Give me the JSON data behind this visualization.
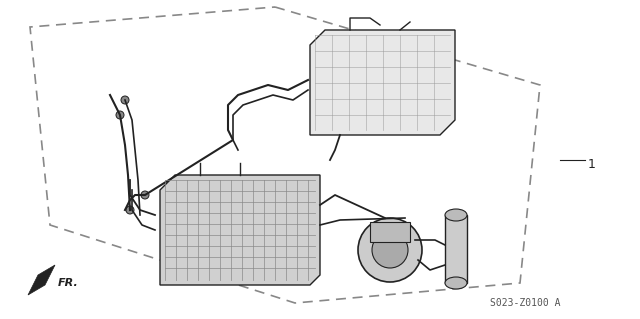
{
  "title": "",
  "part_number_label": "S023-Z0100 A",
  "reference_number": "1",
  "fr_label": "FR.",
  "bg_color": "#ffffff",
  "line_color": "#555555",
  "dark_color": "#222222",
  "light_color": "#aaaaaa",
  "hex_color": "#888888",
  "figsize": [
    6.4,
    3.19
  ],
  "dpi": 100
}
